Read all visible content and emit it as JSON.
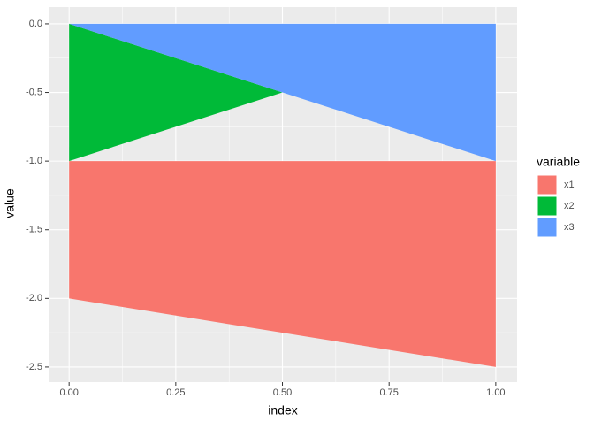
{
  "chart_data": {
    "type": "ribbon",
    "x_label": "index",
    "y_label": "value",
    "legend_title": "variable",
    "x": [
      0,
      0.5,
      1
    ],
    "series": [
      {
        "name": "x1",
        "color": "#F8766D",
        "ymax": [
          -1,
          -1,
          -1
        ],
        "ymin": [
          -2,
          -2.25,
          -2.5
        ]
      },
      {
        "name": "x2",
        "color": "#00BA38",
        "ymax": [
          0,
          -0.5,
          null
        ],
        "ymin": [
          -1,
          -0.5,
          null
        ]
      },
      {
        "name": "x3",
        "color": "#619CFF",
        "ymax": [
          0,
          0,
          0
        ],
        "ymin": [
          0,
          -0.5,
          -1
        ]
      }
    ],
    "xlim": [
      -0.048,
      1.05
    ],
    "ylim": [
      -2.61,
      0.122
    ],
    "xticks": [
      {
        "value": 0,
        "label": "0.00"
      },
      {
        "value": 0.25,
        "label": "0.25"
      },
      {
        "value": 0.5,
        "label": "0.50"
      },
      {
        "value": 0.75,
        "label": "0.75"
      },
      {
        "value": 1,
        "label": "1.00"
      }
    ],
    "yticks": [
      {
        "value": 0,
        "label": "0.0"
      },
      {
        "value": -0.5,
        "label": "-0.5"
      },
      {
        "value": -1,
        "label": "-1.0"
      },
      {
        "value": -1.5,
        "label": "-1.5"
      },
      {
        "value": -2,
        "label": "-2.0"
      },
      {
        "value": -2.5,
        "label": "-2.5"
      }
    ],
    "x_minor_ticks": [
      0.125,
      0.375,
      0.625,
      0.875
    ],
    "y_minor_ticks": [
      -0.25,
      -0.75,
      -1.25,
      -1.75,
      -2.25
    ],
    "grid": true,
    "legend_position": "right"
  }
}
